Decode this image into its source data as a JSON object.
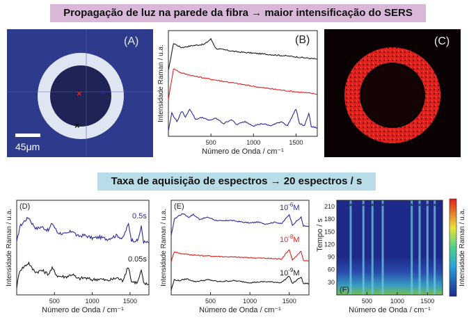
{
  "banner_top": "Propagação de luz na parede da fibra → maior intensificação do SERS",
  "banner_bottom": "Taxa de aquisição de espectros → 20 espectros / s",
  "panel_A": {
    "label": "(A)",
    "scalebar": "45μm"
  },
  "panel_C": {
    "label": "(C)"
  },
  "colors": {
    "black_trace": "#1a1a1a",
    "red_trace": "#e0201c",
    "blue_trace": "#2a2aa0",
    "fiber_bg": "#2e3a8c",
    "fiber_ring": "#dfe6f2",
    "sers_red": "#e0201c"
  },
  "chart_data": [
    {
      "id": "B",
      "type": "line",
      "label": "(B)",
      "xlabel": "Número de Onda / cm⁻¹",
      "ylabel": "Intensidade Raman / u.a.",
      "xlim": [
        0,
        1750
      ],
      "xticks": [
        500,
        1000,
        1500
      ],
      "series": [
        {
          "name": "preto",
          "color": "#1a1a1a",
          "points": [
            [
              0,
              0.62
            ],
            [
              60,
              0.88
            ],
            [
              150,
              0.84
            ],
            [
              300,
              0.86
            ],
            [
              420,
              0.87
            ],
            [
              500,
              0.92
            ],
            [
              560,
              0.83
            ],
            [
              800,
              0.8
            ],
            [
              1100,
              0.78
            ],
            [
              1400,
              0.76
            ],
            [
              1750,
              0.73
            ]
          ]
        },
        {
          "name": "vermelho",
          "color": "#e0201c",
          "points": [
            [
              0,
              0.35
            ],
            [
              60,
              0.64
            ],
            [
              150,
              0.6
            ],
            [
              300,
              0.57
            ],
            [
              500,
              0.54
            ],
            [
              800,
              0.5
            ],
            [
              1100,
              0.46
            ],
            [
              1400,
              0.43
            ],
            [
              1750,
              0.4
            ]
          ]
        },
        {
          "name": "azul",
          "color": "#2a2aa0",
          "points": [
            [
              0,
              0.05
            ],
            [
              40,
              0.22
            ],
            [
              100,
              0.14
            ],
            [
              160,
              0.24
            ],
            [
              200,
              0.18
            ],
            [
              250,
              0.26
            ],
            [
              320,
              0.16
            ],
            [
              400,
              0.18
            ],
            [
              470,
              0.15
            ],
            [
              560,
              0.17
            ],
            [
              650,
              0.12
            ],
            [
              740,
              0.16
            ],
            [
              800,
              0.11
            ],
            [
              900,
              0.14
            ],
            [
              1000,
              0.1
            ],
            [
              1100,
              0.12
            ],
            [
              1200,
              0.1
            ],
            [
              1330,
              0.14
            ],
            [
              1400,
              0.1
            ],
            [
              1500,
              0.26
            ],
            [
              1540,
              0.12
            ],
            [
              1600,
              0.1
            ],
            [
              1650,
              0.22
            ],
            [
              1680,
              0.09
            ],
            [
              1750,
              0.08
            ]
          ]
        }
      ]
    },
    {
      "id": "D",
      "type": "line",
      "label": "(D)",
      "xlabel": "Número de Onda / cm⁻¹",
      "ylabel": "Intensidade Raman / u.a.",
      "xlim": [
        0,
        1750
      ],
      "xticks": [
        500,
        1000,
        1500
      ],
      "xtick_labels": [
        "500",
        "1000",
        "1500"
      ],
      "annotations": [
        "0.5s",
        "0.05s"
      ],
      "series": [
        {
          "name": "0.5s",
          "color": "#2a2aa0",
          "points": [
            [
              0,
              0.55
            ],
            [
              40,
              0.72
            ],
            [
              100,
              0.78
            ],
            [
              160,
              0.82
            ],
            [
              200,
              0.76
            ],
            [
              260,
              0.7
            ],
            [
              330,
              0.72
            ],
            [
              420,
              0.68
            ],
            [
              470,
              0.76
            ],
            [
              540,
              0.66
            ],
            [
              650,
              0.64
            ],
            [
              740,
              0.68
            ],
            [
              800,
              0.62
            ],
            [
              900,
              0.63
            ],
            [
              1000,
              0.6
            ],
            [
              1100,
              0.61
            ],
            [
              1200,
              0.59
            ],
            [
              1330,
              0.63
            ],
            [
              1400,
              0.59
            ],
            [
              1480,
              0.75
            ],
            [
              1520,
              0.58
            ],
            [
              1600,
              0.57
            ],
            [
              1650,
              0.72
            ],
            [
              1680,
              0.56
            ],
            [
              1750,
              0.55
            ]
          ]
        },
        {
          "name": "0.05s",
          "color": "#1a1a1a",
          "points": [
            [
              0,
              0.08
            ],
            [
              40,
              0.26
            ],
            [
              100,
              0.3
            ],
            [
              160,
              0.34
            ],
            [
              200,
              0.28
            ],
            [
              260,
              0.24
            ],
            [
              330,
              0.26
            ],
            [
              420,
              0.22
            ],
            [
              470,
              0.28
            ],
            [
              540,
              0.2
            ],
            [
              650,
              0.19
            ],
            [
              740,
              0.22
            ],
            [
              800,
              0.17
            ],
            [
              900,
              0.18
            ],
            [
              1000,
              0.16
            ],
            [
              1100,
              0.17
            ],
            [
              1200,
              0.15
            ],
            [
              1330,
              0.18
            ],
            [
              1400,
              0.15
            ],
            [
              1480,
              0.3
            ],
            [
              1520,
              0.14
            ],
            [
              1600,
              0.13
            ],
            [
              1650,
              0.26
            ],
            [
              1680,
              0.12
            ],
            [
              1750,
              0.11
            ]
          ]
        }
      ]
    },
    {
      "id": "E",
      "type": "line",
      "label": "(E)",
      "xlabel": "Número de Onda / cm⁻¹",
      "ylabel": "Intensidade Raman / u.a.",
      "xlim": [
        0,
        1750
      ],
      "xticks": [
        500,
        1000,
        1500
      ],
      "annotations": [
        {
          "base": "10",
          "exp": "-6",
          "unit": "M",
          "color": "#2a2aa0"
        },
        {
          "base": "10",
          "exp": "-8",
          "unit": "M",
          "color": "#e0201c"
        },
        {
          "base": "10",
          "exp": "-9",
          "unit": "M",
          "color": "#1a1a1a"
        }
      ],
      "series": [
        {
          "name": "10^-6 M",
          "color": "#2a2aa0",
          "points": [
            [
              0,
              0.62
            ],
            [
              40,
              0.8
            ],
            [
              100,
              0.84
            ],
            [
              160,
              0.86
            ],
            [
              220,
              0.82
            ],
            [
              280,
              0.85
            ],
            [
              360,
              0.8
            ],
            [
              470,
              0.82
            ],
            [
              560,
              0.79
            ],
            [
              650,
              0.78
            ],
            [
              740,
              0.79
            ],
            [
              900,
              0.77
            ],
            [
              1000,
              0.76
            ],
            [
              1100,
              0.77
            ],
            [
              1200,
              0.75
            ],
            [
              1330,
              0.77
            ],
            [
              1400,
              0.75
            ],
            [
              1500,
              0.85
            ],
            [
              1540,
              0.74
            ],
            [
              1650,
              0.82
            ],
            [
              1680,
              0.73
            ],
            [
              1750,
              0.72
            ]
          ]
        },
        {
          "name": "10^-8 M",
          "color": "#e0201c",
          "points": [
            [
              0,
              0.35
            ],
            [
              40,
              0.46
            ],
            [
              100,
              0.44
            ],
            [
              300,
              0.42
            ],
            [
              500,
              0.41
            ],
            [
              800,
              0.4
            ],
            [
              1100,
              0.39
            ],
            [
              1400,
              0.38
            ],
            [
              1500,
              0.48
            ],
            [
              1540,
              0.37
            ],
            [
              1650,
              0.46
            ],
            [
              1680,
              0.36
            ],
            [
              1750,
              0.36
            ]
          ]
        },
        {
          "name": "10^-9 M",
          "color": "#1a1a1a",
          "points": [
            [
              0,
              0.05
            ],
            [
              40,
              0.16
            ],
            [
              100,
              0.15
            ],
            [
              200,
              0.17
            ],
            [
              300,
              0.14
            ],
            [
              470,
              0.16
            ],
            [
              600,
              0.14
            ],
            [
              800,
              0.15
            ],
            [
              1000,
              0.13
            ],
            [
              1200,
              0.14
            ],
            [
              1400,
              0.13
            ],
            [
              1500,
              0.2
            ],
            [
              1540,
              0.12
            ],
            [
              1650,
              0.19
            ],
            [
              1680,
              0.12
            ],
            [
              1750,
              0.12
            ]
          ]
        }
      ]
    },
    {
      "id": "F",
      "type": "heatmap",
      "label": "(F)",
      "xlabel": "Número de Onda / cm⁻¹",
      "ylabel": "Tempo / s",
      "colorbar_label": "Intensidade Raman / u.a.",
      "xlim": [
        0,
        1750
      ],
      "xticks": [
        500,
        1000,
        1500
      ],
      "ylim": [
        0,
        225
      ],
      "yticks": [
        30,
        60,
        90,
        120,
        150,
        180,
        210
      ],
      "star_positions_cm": [
        230,
        440,
        590,
        760,
        1240,
        1370,
        1500,
        1620
      ],
      "peak_lines_cm": [
        230,
        440,
        590,
        760,
        1240,
        1370,
        1500,
        1620
      ],
      "star_symbol": "*"
    }
  ]
}
